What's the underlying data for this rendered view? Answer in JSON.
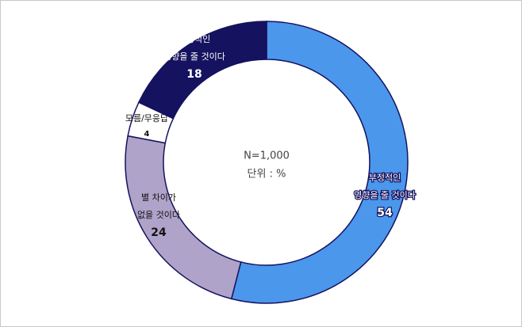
{
  "chart_data": {
    "type": "donut",
    "categories": [
      [
        "부정적인",
        "영향을 줄 것이다"
      ],
      [
        "별 차이가",
        "없을 것이다"
      ],
      [
        "모름/무응답"
      ],
      [
        "긍정적인",
        "영향을 줄 것이다"
      ]
    ],
    "values": [
      54,
      24,
      4,
      18
    ],
    "colors": [
      "#4a97ec",
      "#b0a3c9",
      "#ffffff",
      "#15125f"
    ],
    "annotations": [
      "N=1,000",
      "단위 : %"
    ]
  }
}
